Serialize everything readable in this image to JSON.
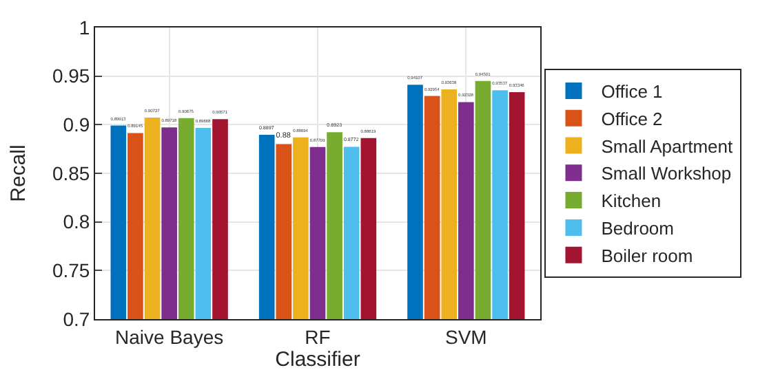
{
  "chart_data": {
    "type": "bar",
    "xlabel": "Classifier",
    "ylabel": "Recall",
    "categories": [
      "Naive Bayes",
      "RF",
      "SVM"
    ],
    "series": [
      {
        "name": "Office 1",
        "color": "#0072bd",
        "values": [
          0.89913,
          0.8897,
          0.94107
        ]
      },
      {
        "name": "Office 2",
        "color": "#d95319",
        "values": [
          0.89145,
          0.88,
          0.92954
        ]
      },
      {
        "name": "Small Apartment",
        "color": "#edb120",
        "values": [
          0.90727,
          0.88694,
          0.93638
        ]
      },
      {
        "name": "Small Workshop",
        "color": "#7e2f8e",
        "values": [
          0.89718,
          0.87709,
          0.92328
        ]
      },
      {
        "name": "Kitchen",
        "color": "#77ac30",
        "values": [
          0.90675,
          0.8923,
          0.94501
        ]
      },
      {
        "name": "Bedroom",
        "color": "#4dbeee",
        "values": [
          0.89668,
          0.8772,
          0.93537
        ]
      },
      {
        "name": "Boiler room",
        "color": "#a2142f",
        "values": [
          0.90571,
          0.88619,
          0.93346
        ]
      }
    ],
    "ylim": [
      0.7,
      1
    ],
    "yticks": [
      0.7,
      0.75,
      0.8,
      0.85,
      0.9,
      0.95,
      1
    ],
    "grid": true,
    "legend": "right",
    "data_labels": true
  }
}
